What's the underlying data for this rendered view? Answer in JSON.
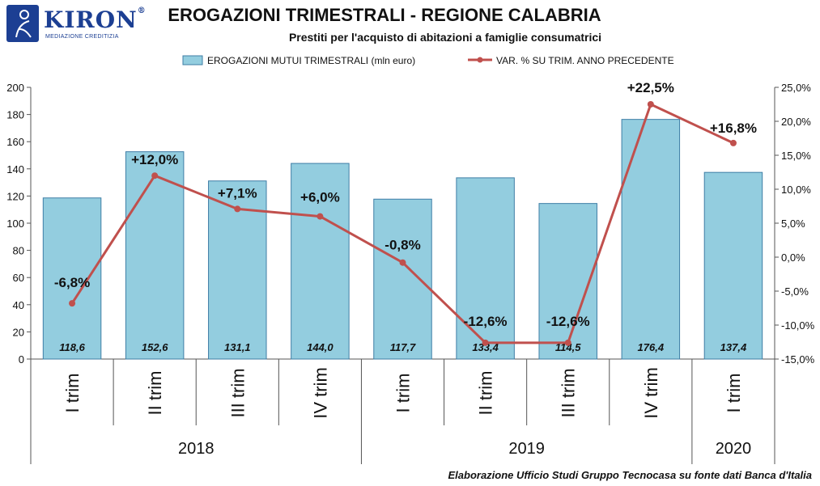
{
  "logo": {
    "brand": "KIRON",
    "registered": "®",
    "tagline": "MEDIAZIONE CREDITIZIA"
  },
  "colors": {
    "bar_fill": "#93cddf",
    "bar_stroke": "#3f7ea6",
    "line": "#c0504d",
    "grid": "#555555"
  },
  "chart_data": {
    "type": "bar",
    "title": "EROGAZIONI TRIMESTRALI - REGIONE CALABRIA",
    "subtitle": "Prestiti per l'acquisto di abitazioni  a famiglie consumatrici",
    "categories": [
      "I trim",
      "II trim",
      "III trim",
      "IV trim",
      "I trim",
      "II trim",
      "III trim",
      "IV trim",
      "I trim"
    ],
    "groups": [
      {
        "label": "2018",
        "count": 4
      },
      {
        "label": "2019",
        "count": 4
      },
      {
        "label": "2020",
        "count": 1
      }
    ],
    "series": [
      {
        "name": "EROGAZIONI MUTUI TRIMESTRALI (mln euro)",
        "type": "bar",
        "axis": "left",
        "values": [
          118.6,
          152.6,
          131.1,
          144.0,
          117.7,
          133.4,
          114.5,
          176.4,
          137.4
        ],
        "labels": [
          "118,6",
          "152,6",
          "131,1",
          "144,0",
          "117,7",
          "133,4",
          "114,5",
          "176,4",
          "137,4"
        ]
      },
      {
        "name": "VAR. % SU TRIM. ANNO PRECEDENTE",
        "type": "line",
        "axis": "right",
        "values": [
          -6.8,
          12.0,
          7.1,
          6.0,
          -0.8,
          -12.6,
          -12.6,
          22.5,
          16.8
        ],
        "labels": [
          "-6,8%",
          "+12,0%",
          "+7,1%",
          "+6,0%",
          "-0,8%",
          "-12,6%",
          "-12,6%",
          "+22,5%",
          "+16,8%"
        ]
      }
    ],
    "y_left": {
      "min": 0,
      "max": 200,
      "step": 20,
      "ticks": [
        "0",
        "20",
        "40",
        "60",
        "80",
        "100",
        "120",
        "140",
        "160",
        "180",
        "200"
      ]
    },
    "y_right": {
      "min": -15,
      "max": 25,
      "step": 5,
      "ticks": [
        "-15,0%",
        "-10,0%",
        "-5,0%",
        "0,0%",
        "5,0%",
        "10,0%",
        "15,0%",
        "20,0%",
        "25,0%"
      ]
    },
    "legend_position": "top"
  },
  "source_note": "Elaborazione  Ufficio Studi Gruppo Tecnocasa su fonte dati Banca d'Italia"
}
